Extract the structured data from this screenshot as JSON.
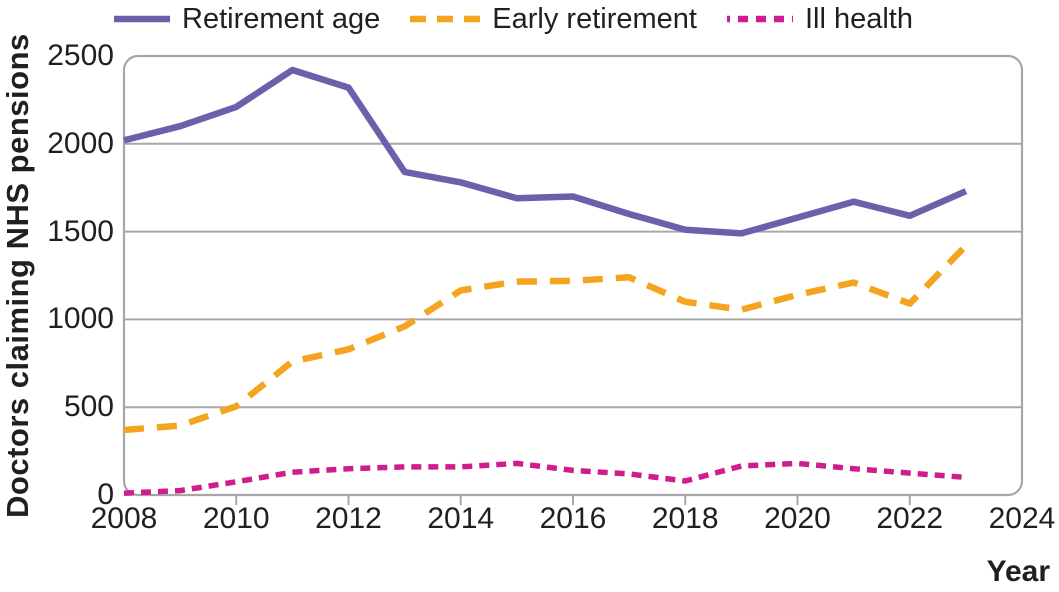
{
  "figure": {
    "x_axis_title": "Year",
    "y_axis_title": "Doctors claiming NHS pensions"
  },
  "colors": {
    "retirement_age": "#6f5ea9",
    "early_retirement": "#f5a41f",
    "ill_health": "#cf1d8d",
    "grid": "#a7a7aa",
    "text": "#231f20"
  },
  "chart_data": {
    "type": "line",
    "title": "",
    "xlabel": "Year",
    "ylabel": "Doctors claiming NHS pensions",
    "xlim": [
      2008,
      2024
    ],
    "ylim": [
      0,
      2500
    ],
    "x_ticks": [
      2008,
      2010,
      2012,
      2014,
      2016,
      2018,
      2020,
      2022,
      2024
    ],
    "y_ticks": [
      0,
      500,
      1000,
      1500,
      2000,
      2500
    ],
    "grid": "horizontal",
    "legend_position": "top",
    "x": [
      2008,
      2009,
      2010,
      2011,
      2012,
      2013,
      2014,
      2015,
      2016,
      2017,
      2018,
      2019,
      2020,
      2021,
      2022,
      2023
    ],
    "series": [
      {
        "name": "Retirement age",
        "color": "#6f5ea9",
        "dash": "solid",
        "values": [
          2020,
          2100,
          2210,
          2420,
          2320,
          1840,
          1780,
          1690,
          1700,
          1600,
          1510,
          1490,
          1580,
          1670,
          1590,
          1730
        ]
      },
      {
        "name": "Early retirement",
        "color": "#f5a41f",
        "dash": "dashed",
        "values": [
          370,
          395,
          505,
          760,
          830,
          960,
          1165,
          1215,
          1220,
          1240,
          1100,
          1055,
          1140,
          1210,
          1090,
          1420
        ]
      },
      {
        "name": "Ill health",
        "color": "#cf1d8d",
        "dash": "dotted",
        "values": [
          10,
          25,
          75,
          130,
          150,
          160,
          160,
          180,
          140,
          120,
          80,
          165,
          180,
          150,
          125,
          100
        ]
      }
    ]
  }
}
